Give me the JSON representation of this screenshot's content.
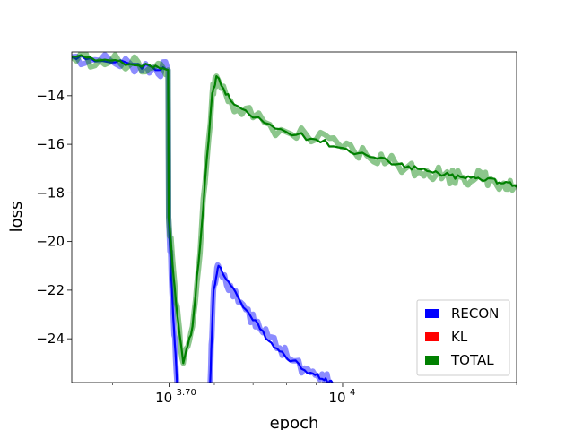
{
  "chart_data": {
    "type": "line",
    "xlabel": "epoch",
    "ylabel": "loss",
    "xscale": "log",
    "xlim": [
      3400,
      20000
    ],
    "ylim": [
      -25.8,
      -12.2
    ],
    "x_ticks": [
      {
        "value": 5012,
        "base": "10",
        "exp": "3.70"
      },
      {
        "value": 10000,
        "base": "10",
        "exp": "4"
      }
    ],
    "y_ticks": [
      {
        "value": -14,
        "label": "−14"
      },
      {
        "value": -16,
        "label": "−16"
      },
      {
        "value": -18,
        "label": "−18"
      },
      {
        "value": -20,
        "label": "−20"
      },
      {
        "value": -22,
        "label": "−22"
      },
      {
        "value": -24,
        "label": "−24"
      }
    ],
    "legend_position": "bottom-right",
    "series": [
      {
        "name": "RECON",
        "color": "#0000ff",
        "points": [
          [
            3400,
            -12.4
          ],
          [
            3800,
            -12.55
          ],
          [
            4300,
            -12.7
          ],
          [
            4700,
            -12.85
          ],
          [
            4990,
            -12.95
          ],
          [
            5000,
            -19.0
          ],
          [
            5080,
            -22.5
          ],
          [
            5170,
            -25.8
          ]
        ],
        "segments": [
          [
            [
              5900,
              -25.8
            ],
            [
              5980,
              -22.0
            ],
            [
              6100,
              -21.0
            ],
            [
              6400,
              -21.8
            ],
            [
              6800,
              -22.8
            ],
            [
              7200,
              -23.6
            ],
            [
              7700,
              -24.4
            ],
            [
              8200,
              -24.9
            ],
            [
              8800,
              -25.4
            ],
            [
              9300,
              -25.7
            ],
            [
              9600,
              -25.8
            ]
          ]
        ]
      },
      {
        "name": "KL",
        "color": "#ff0000",
        "points": []
      },
      {
        "name": "TOTAL",
        "color": "#008000",
        "points": [
          [
            3400,
            -12.4
          ],
          [
            3800,
            -12.55
          ],
          [
            4300,
            -12.7
          ],
          [
            4700,
            -12.85
          ],
          [
            4990,
            -12.95
          ],
          [
            5000,
            -19.0
          ],
          [
            5150,
            -22.5
          ],
          [
            5300,
            -25.0
          ],
          [
            5500,
            -23.5
          ],
          [
            5700,
            -19.5
          ],
          [
            5950,
            -13.9
          ],
          [
            6050,
            -13.2
          ],
          [
            6400,
            -14.2
          ],
          [
            7000,
            -14.9
          ],
          [
            8000,
            -15.5
          ],
          [
            9000,
            -15.8
          ],
          [
            10000,
            -16.15
          ],
          [
            11000,
            -16.45
          ],
          [
            12000,
            -16.7
          ],
          [
            13000,
            -16.9
          ],
          [
            14000,
            -17.1
          ],
          [
            15000,
            -17.25
          ],
          [
            16000,
            -17.35
          ],
          [
            17000,
            -17.4
          ],
          [
            18000,
            -17.4
          ],
          [
            19000,
            -17.6
          ],
          [
            20000,
            -17.75
          ]
        ]
      }
    ]
  },
  "colors": {
    "legend_border": "#cccccc",
    "axis": "#000000"
  }
}
